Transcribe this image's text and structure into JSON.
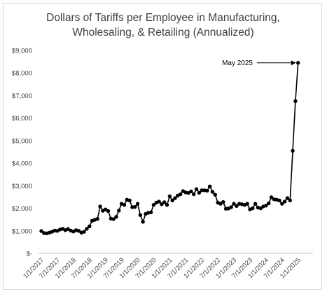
{
  "chart_data": {
    "type": "line",
    "title_lines": [
      "Dollars of Tariffs per Employee in Manufacturing,",
      "Wholesaling, & Retailing (Annualized)"
    ],
    "xlabel": "",
    "ylabel": "",
    "y_ticks": [
      0,
      1000,
      2000,
      3000,
      4000,
      5000,
      6000,
      7000,
      8000,
      9000
    ],
    "y_tick_labels": [
      "$-",
      "$1,000",
      "$2,000",
      "$3,000",
      "$4,000",
      "$5,000",
      "$6,000",
      "$7,000",
      "$8,000",
      "$9,000"
    ],
    "ylim": [
      0,
      9000
    ],
    "x_tick_labels": [
      "1/1/2017",
      "7/1/2017",
      "1/1/2018",
      "7/1/2018",
      "1/1/2019",
      "7/1/2019",
      "1/1/2020",
      "7/1/2020",
      "1/1/2021",
      "7/1/2021",
      "1/1/2022",
      "7/1/2022",
      "1/1/2023",
      "7/1/2023",
      "1/1/2024",
      "7/1/2024",
      "1/1/2025"
    ],
    "x_start": "2017-01",
    "x_end": "2025-05",
    "grid": false,
    "legend": "none",
    "line_color": "#000000",
    "marker": "circle",
    "annotation": {
      "text": "May 2025",
      "points_to": "2025-05"
    },
    "series": [
      {
        "values": [
          990,
          900,
          890,
          920,
          960,
          1010,
          1000,
          1060,
          1090,
          1030,
          1080,
          1010,
          970,
          1030,
          1000,
          920,
          960,
          1090,
          1200,
          1450,
          1490,
          1530,
          2080,
          1890,
          1950,
          1880,
          1540,
          1520,
          1620,
          1900,
          2200,
          2150,
          2380,
          2350,
          2050,
          2060,
          2200,
          1700,
          1400,
          1750,
          1800,
          1820,
          2150,
          2250,
          2300,
          2180,
          2270,
          2150,
          2530,
          2350,
          2450,
          2560,
          2620,
          2760,
          2700,
          2680,
          2750,
          2620,
          2850,
          2690,
          2800,
          2800,
          2780,
          2970,
          2730,
          2600,
          2250,
          2200,
          2280,
          1980,
          1990,
          2050,
          2200,
          2100,
          2200,
          2180,
          2150,
          2200,
          1950,
          2000,
          2200,
          2030,
          2000,
          2080,
          2120,
          2220,
          2490,
          2400,
          2380,
          2350,
          2200,
          2300,
          2450,
          2350,
          4550,
          6750,
          8450
        ]
      }
    ]
  }
}
